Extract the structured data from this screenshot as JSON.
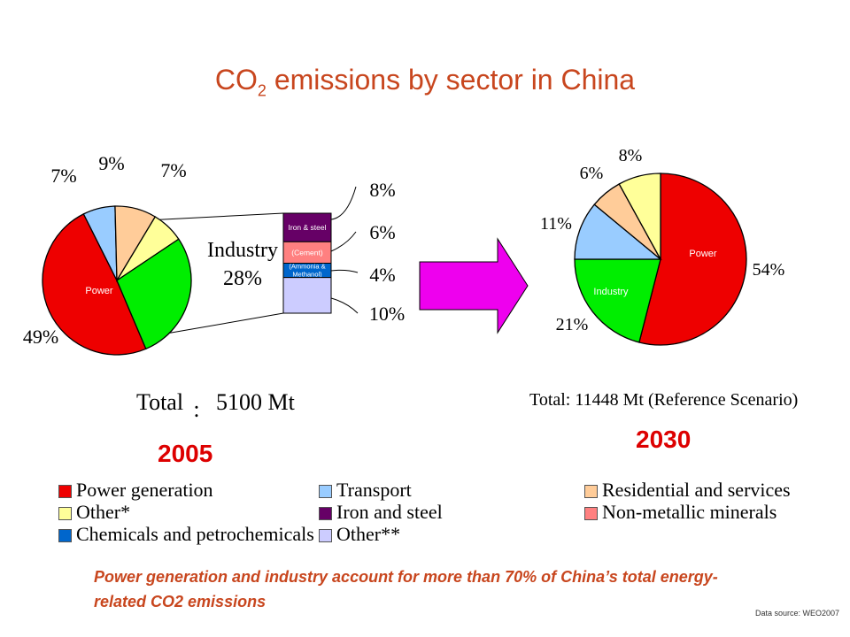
{
  "title": {
    "main": "CO",
    "sub": "2",
    "rest": " emissions by sector in China"
  },
  "chart_data": [
    {
      "type": "pie",
      "year_label": "2005",
      "total_label": "Total",
      "total_colon": ":",
      "total_value": "5100 Mt",
      "slices": [
        {
          "name": "Power",
          "value": 49,
          "label": "49%",
          "color": "#ee0000",
          "inner_label": "Power"
        },
        {
          "name": "Transport",
          "value": 7,
          "label": "7%",
          "color": "#99ccff"
        },
        {
          "name": "Residential and services",
          "value": 9,
          "label": "9%",
          "color": "#ffcc99"
        },
        {
          "name": "Other*",
          "value": 7,
          "label": "7%",
          "color": "#ffff99"
        },
        {
          "name": "Industry",
          "value": 28,
          "label": "",
          "color": "#00ee00"
        }
      ],
      "industry_callout": {
        "label": "Industry",
        "value": "28%"
      },
      "industry_breakdown": [
        {
          "name": "Iron and steel",
          "inner_label": "Iron & steel",
          "value": 8,
          "label": "8%",
          "color": "#660066"
        },
        {
          "name": "Non-metallic minerals",
          "inner_label": "(Cement)",
          "value": 6,
          "label": "6%",
          "color": "#ff8080"
        },
        {
          "name": "Chemicals and petrochemicals",
          "inner_label": "(Ammonia & Methanol)",
          "value": 4,
          "label": "4%",
          "color": "#0066cc"
        },
        {
          "name": "Other**",
          "inner_label": "",
          "value": 10,
          "label": "10%",
          "color": "#ccccff"
        }
      ]
    },
    {
      "type": "pie",
      "year_label": "2030",
      "total_text": "Total: 11448 Mt (Reference Scenario)",
      "slices": [
        {
          "name": "Power",
          "value": 54,
          "label": "54%",
          "color": "#ee0000",
          "inner_label": "Power"
        },
        {
          "name": "Industry",
          "value": 21,
          "label": "21%",
          "color": "#00ee00",
          "inner_label": "Industry"
        },
        {
          "name": "Transport",
          "value": 11,
          "label": "11%",
          "color": "#99ccff"
        },
        {
          "name": "Residential and services",
          "value": 6,
          "label": "6%",
          "color": "#ffcc99"
        },
        {
          "name": "Other*",
          "value": 8,
          "label": "8%",
          "color": "#ffff99"
        }
      ]
    }
  ],
  "legend": [
    {
      "label": "Power generation",
      "color": "#ee0000"
    },
    {
      "label": "Transport",
      "color": "#99ccff"
    },
    {
      "label": "Residential and services",
      "color": "#ffcc99"
    },
    {
      "label": "Other*",
      "color": "#ffff99"
    },
    {
      "label": "Iron and steel",
      "color": "#660066"
    },
    {
      "label": "Non-metallic minerals",
      "color": "#ff8080"
    },
    {
      "label": "Chemicals and petrochemicals",
      "color": "#0066cc"
    },
    {
      "label": "Other**",
      "color": "#ccccff"
    }
  ],
  "arrow_color": "#ee00ee",
  "note": "Power generation and industry account for more than 70% of China’s total energy-related CO2 emissions",
  "source": "Data source: WEO2007"
}
